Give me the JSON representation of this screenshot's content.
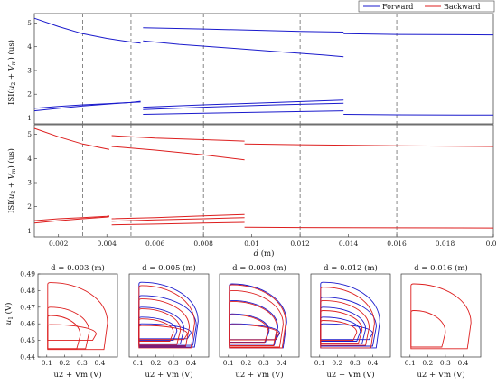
{
  "legend": {
    "placement": "top-right",
    "entries": [
      {
        "name": "Forward",
        "color": "#1a1acc"
      },
      {
        "name": "Backward",
        "color": "#dd1f1f"
      }
    ]
  },
  "chart_data": [
    {
      "type": "line",
      "panel": "top",
      "ylabel": "ISI(u2 + Vm) (us)",
      "xlabel": "",
      "xlim": [
        0.001,
        0.02
      ],
      "ylim": [
        0.75,
        5.4
      ],
      "yticks": [
        "1",
        "2",
        "3",
        "4",
        "5"
      ],
      "xticks": [],
      "grid": false,
      "vlines": [
        0.003,
        0.005,
        0.008,
        0.012,
        0.016
      ],
      "series": [
        {
          "name": "Forward",
          "segments": [
            {
              "x": [
                0.001,
                0.002,
                0.003,
                0.004,
                0.005,
                0.0054
              ],
              "y": [
                5.2,
                4.85,
                4.55,
                4.35,
                4.2,
                4.15
              ]
            },
            {
              "x": [
                0.001,
                0.002,
                0.003,
                0.004,
                0.005,
                0.0054
              ],
              "y": [
                1.4,
                1.48,
                1.55,
                1.6,
                1.65,
                1.7
              ]
            },
            {
              "x": [
                0.001,
                0.002,
                0.003,
                0.004,
                0.005,
                0.0054
              ],
              "y": [
                1.3,
                1.4,
                1.5,
                1.58,
                1.65,
                1.67
              ]
            },
            {
              "x": [
                0.0055,
                0.008,
                0.01,
                0.012,
                0.0138
              ],
              "y": [
                4.8,
                4.75,
                4.7,
                4.65,
                4.62
              ]
            },
            {
              "x": [
                0.0055,
                0.007,
                0.009,
                0.011,
                0.013,
                0.0138
              ],
              "y": [
                4.25,
                4.1,
                3.95,
                3.8,
                3.65,
                3.58
              ]
            },
            {
              "x": [
                0.0055,
                0.008,
                0.011,
                0.0138
              ],
              "y": [
                1.45,
                1.55,
                1.65,
                1.75
              ]
            },
            {
              "x": [
                0.0055,
                0.008,
                0.011,
                0.0138
              ],
              "y": [
                1.35,
                1.45,
                1.55,
                1.62
              ]
            },
            {
              "x": [
                0.0055,
                0.008,
                0.011,
                0.0138
              ],
              "y": [
                1.15,
                1.2,
                1.25,
                1.3
              ]
            },
            {
              "x": [
                0.0138,
                0.016,
                0.02
              ],
              "y": [
                4.55,
                4.52,
                4.5
              ]
            },
            {
              "x": [
                0.0138,
                0.016,
                0.02
              ],
              "y": [
                1.15,
                1.13,
                1.12
              ]
            }
          ]
        }
      ]
    },
    {
      "type": "line",
      "panel": "middle",
      "ylabel": "ISI(u2 + Vm) (us)",
      "xlabel": "d (m)",
      "xlim": [
        0.001,
        0.02
      ],
      "ylim": [
        0.75,
        5.4
      ],
      "yticks": [
        "1",
        "2",
        "3",
        "4",
        "5"
      ],
      "xticks": [
        "0.002",
        "0.004",
        "0.006",
        "0.008",
        "0.01",
        "0.012",
        "0.014",
        "0.016",
        "0.018",
        "0.02"
      ],
      "grid": false,
      "vlines": [
        0.003,
        0.005,
        0.008,
        0.012,
        0.016
      ],
      "series": [
        {
          "name": "Backward",
          "segments": [
            {
              "x": [
                0.001,
                0.002,
                0.003,
                0.004,
                0.0041
              ],
              "y": [
                5.25,
                4.9,
                4.6,
                4.4,
                4.38
              ]
            },
            {
              "x": [
                0.001,
                0.002,
                0.003,
                0.004,
                0.0041
              ],
              "y": [
                1.42,
                1.5,
                1.55,
                1.6,
                1.62
              ]
            },
            {
              "x": [
                0.001,
                0.002,
                0.003,
                0.004,
                0.0041
              ],
              "y": [
                1.32,
                1.42,
                1.5,
                1.57,
                1.59
              ]
            },
            {
              "x": [
                0.0042,
                0.006,
                0.008,
                0.0097
              ],
              "y": [
                4.95,
                4.85,
                4.78,
                4.72
              ]
            },
            {
              "x": [
                0.0042,
                0.006,
                0.008,
                0.0097
              ],
              "y": [
                4.5,
                4.35,
                4.15,
                3.95
              ]
            },
            {
              "x": [
                0.0042,
                0.006,
                0.008,
                0.0097
              ],
              "y": [
                1.5,
                1.55,
                1.62,
                1.68
              ]
            },
            {
              "x": [
                0.0042,
                0.006,
                0.008,
                0.0097
              ],
              "y": [
                1.4,
                1.45,
                1.5,
                1.55
              ]
            },
            {
              "x": [
                0.0042,
                0.006,
                0.008,
                0.0097
              ],
              "y": [
                1.25,
                1.28,
                1.32,
                1.35
              ]
            },
            {
              "x": [
                0.0097,
                0.012,
                0.016,
                0.02
              ],
              "y": [
                4.6,
                4.57,
                4.53,
                4.5
              ]
            },
            {
              "x": [
                0.0097,
                0.012,
                0.016,
                0.02
              ],
              "y": [
                1.15,
                1.14,
                1.13,
                1.12
              ]
            }
          ]
        }
      ]
    },
    {
      "type": "line",
      "panel": "bottom-1",
      "title": "d = 0.003 (m)",
      "xlabel": "u2 + Vm (V)",
      "ylabel": "u1 (V)",
      "xlim": [
        0.05,
        0.5
      ],
      "ylim": [
        0.44,
        0.49
      ],
      "xticks": [
        "0.1",
        "0.2",
        "0.3",
        "0.4"
      ],
      "yticks": [
        "0.44",
        "0.45",
        "0.46",
        "0.47",
        "0.48",
        "0.49"
      ],
      "series": [
        {
          "name": "Backward",
          "loops": [
            [
              0.4445,
              0.4848,
              0.4438
            ],
            [
              0.445,
              0.47,
              0.34
            ],
            [
              0.445,
              0.465,
              0.29
            ],
            [
              0.45,
              0.4595,
              0.38
            ]
          ]
        }
      ]
    },
    {
      "type": "line",
      "panel": "bottom-2",
      "title": "d = 0.005 (m)",
      "xlabel": "u2 + Vm (V)",
      "ylabel": "",
      "xlim": [
        0.05,
        0.5
      ],
      "ylim": [
        0.44,
        0.49
      ],
      "xticks": [
        "0.1",
        "0.2",
        "0.3",
        "0.4"
      ],
      "series": [
        {
          "name": "Forward",
          "loops": [
            [
              0.446,
              0.485,
              0.44
            ],
            [
              0.447,
              0.477,
              0.43
            ],
            [
              0.448,
              0.47,
              0.36
            ],
            [
              0.45,
              0.464,
              0.32
            ],
            [
              0.451,
              0.46,
              0.4
            ]
          ]
        },
        {
          "name": "Backward",
          "loops": [
            [
              0.4455,
              0.483,
              0.42
            ],
            [
              0.4465,
              0.475,
              0.39
            ],
            [
              0.4475,
              0.469,
              0.34
            ],
            [
              0.4495,
              0.463,
              0.3
            ],
            [
              0.4505,
              0.459,
              0.38
            ]
          ]
        }
      ]
    },
    {
      "type": "line",
      "panel": "bottom-3",
      "title": "d = 0.008 (m)",
      "xlabel": "u2 + Vm (V)",
      "ylabel": "",
      "xlim": [
        0.05,
        0.5
      ],
      "ylim": [
        0.44,
        0.49
      ],
      "xticks": [
        "0.1",
        "0.2",
        "0.3",
        "0.4"
      ],
      "series": [
        {
          "name": "Forward",
          "loops": [
            [
              0.4455,
              0.484,
              0.43
            ],
            [
              0.447,
              0.474,
              0.38
            ],
            [
              0.449,
              0.466,
              0.33
            ],
            [
              0.4505,
              0.46,
              0.39
            ]
          ]
        },
        {
          "name": "Backward",
          "loops": [
            [
              0.4455,
              0.4835,
              0.425
            ],
            [
              0.4468,
              0.4735,
              0.375
            ],
            [
              0.4488,
              0.4655,
              0.325
            ],
            [
              0.4503,
              0.4595,
              0.385
            ],
            [
              0.446,
              0.48,
              0.41
            ]
          ]
        }
      ]
    },
    {
      "type": "line",
      "panel": "bottom-4",
      "title": "d = 0.012 (m)",
      "xlabel": "u2 + Vm (V)",
      "ylabel": "",
      "xlim": [
        0.05,
        0.5
      ],
      "ylim": [
        0.44,
        0.49
      ],
      "xticks": [
        "0.1",
        "0.2",
        "0.3",
        "0.4"
      ],
      "series": [
        {
          "name": "Forward",
          "loops": [
            [
              0.4455,
              0.485,
              0.44
            ],
            [
              0.4465,
              0.476,
              0.42
            ],
            [
              0.448,
              0.47,
              0.36
            ],
            [
              0.4495,
              0.464,
              0.33
            ],
            [
              0.4505,
              0.46,
              0.4
            ]
          ]
        },
        {
          "name": "Backward",
          "loops": [
            [
              0.4455,
              0.482,
              0.41
            ],
            [
              0.447,
              0.474,
              0.38
            ],
            [
              0.4485,
              0.468,
              0.34
            ],
            [
              0.45,
              0.462,
              0.31
            ]
          ]
        }
      ]
    },
    {
      "type": "line",
      "panel": "bottom-5",
      "title": "d = 0.016 (m)",
      "xlabel": "u2 + Vm (V)",
      "ylabel": "",
      "xlim": [
        0.05,
        0.5
      ],
      "ylim": [
        0.44,
        0.49
      ],
      "xticks": [
        "0.1",
        "0.2",
        "0.3",
        "0.4"
      ],
      "series": [
        {
          "name": "Backward",
          "loops": [
            [
              0.445,
              0.484,
              0.445
            ],
            [
              0.446,
              0.468,
              0.3
            ]
          ]
        }
      ]
    }
  ]
}
